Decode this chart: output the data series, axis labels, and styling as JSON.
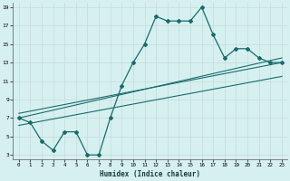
{
  "title": "",
  "xlabel": "Humidex (Indice chaleur)",
  "xlim": [
    -0.5,
    23.5
  ],
  "ylim": [
    2.5,
    19.5
  ],
  "xticks": [
    0,
    1,
    2,
    3,
    4,
    5,
    6,
    7,
    8,
    9,
    10,
    11,
    12,
    13,
    14,
    15,
    16,
    17,
    18,
    19,
    20,
    21,
    22,
    23
  ],
  "yticks": [
    3,
    5,
    7,
    9,
    11,
    13,
    15,
    17,
    19
  ],
  "bg_color": "#d6f0f0",
  "grid_color": "#c8dede",
  "line_color": "#1a6b6b",
  "curve_x": [
    0,
    1,
    2,
    3,
    4,
    5,
    6,
    7,
    8,
    9,
    10,
    11,
    12,
    13,
    14,
    15,
    16,
    17,
    18,
    19,
    20,
    21,
    22,
    23
  ],
  "curve_y": [
    7,
    6.5,
    4.5,
    3.5,
    5.5,
    5.5,
    3.0,
    3.0,
    7.0,
    10.5,
    13.0,
    15.0,
    18.0,
    17.5,
    17.5,
    17.5,
    19.0,
    16.0,
    13.5,
    14.5,
    14.5,
    13.5,
    13.0,
    13.0
  ],
  "line1_x": [
    0,
    23
  ],
  "line1_y": [
    7.0,
    13.5
  ],
  "line2_x": [
    0,
    23
  ],
  "line2_y": [
    7.5,
    13.0
  ],
  "line3_x": [
    0,
    23
  ],
  "line3_y": [
    6.2,
    11.5
  ]
}
